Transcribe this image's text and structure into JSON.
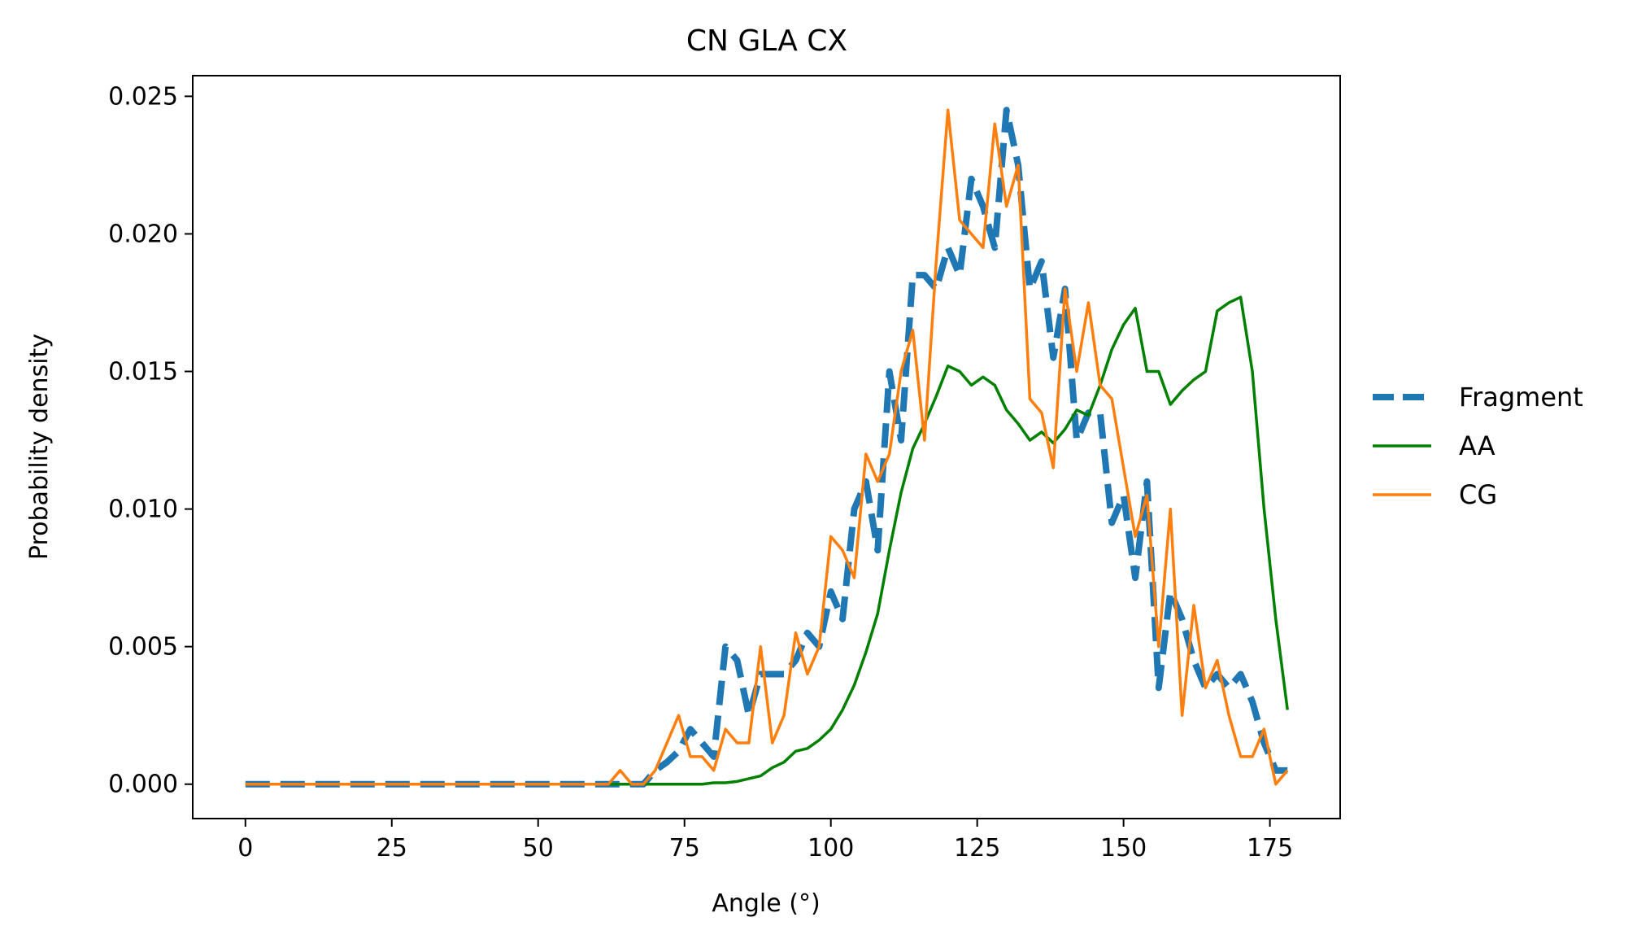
{
  "chart_data": {
    "type": "line",
    "title": "CN GLA CX",
    "xlabel": "Angle (°)",
    "ylabel": "Probability density",
    "xlim": [
      -9,
      187
    ],
    "ylim": [
      -0.00125,
      0.02575
    ],
    "xticks": [
      0,
      25,
      50,
      75,
      100,
      125,
      150,
      175
    ],
    "yticks": [
      0.0,
      0.005,
      0.01,
      0.015,
      0.02,
      0.025
    ],
    "xtick_labels": [
      "0",
      "25",
      "50",
      "75",
      "100",
      "125",
      "150",
      "175"
    ],
    "ytick_labels": [
      "0.000",
      "0.005",
      "0.010",
      "0.015",
      "0.020",
      "0.025"
    ],
    "grid": false,
    "legend_position": "right-outside",
    "series": [
      {
        "name": "Fragment",
        "color": "#1f77b4",
        "style": "dashed",
        "x": [
          0,
          2,
          4,
          6,
          8,
          10,
          12,
          14,
          16,
          18,
          20,
          22,
          24,
          26,
          28,
          30,
          32,
          34,
          36,
          38,
          40,
          42,
          44,
          46,
          48,
          50,
          52,
          54,
          56,
          58,
          60,
          62,
          64,
          66,
          68,
          70,
          72,
          74,
          76,
          78,
          80,
          82,
          84,
          86,
          88,
          90,
          92,
          94,
          96,
          98,
          100,
          102,
          104,
          106,
          108,
          110,
          112,
          114,
          116,
          118,
          120,
          122,
          124,
          126,
          128,
          130,
          132,
          134,
          136,
          138,
          140,
          142,
          144,
          146,
          148,
          150,
          152,
          154,
          156,
          158,
          160,
          162,
          164,
          166,
          168,
          170,
          172,
          174,
          176,
          178
        ],
        "y": [
          0,
          0,
          0,
          0,
          0,
          0,
          0,
          0,
          0,
          0,
          0,
          0,
          0,
          0,
          0,
          0,
          0,
          0,
          0,
          0,
          0,
          0,
          0,
          0,
          0,
          0,
          0,
          0,
          0,
          0,
          0,
          0,
          0,
          0,
          0,
          0.0005,
          0.0008,
          0.0012,
          0.002,
          0.0015,
          0.001,
          0.005,
          0.0045,
          0.0025,
          0.004,
          0.004,
          0.004,
          0.0045,
          0.0055,
          0.005,
          0.007,
          0.006,
          0.01,
          0.011,
          0.0085,
          0.015,
          0.0125,
          0.0185,
          0.0185,
          0.018,
          0.0195,
          0.0185,
          0.022,
          0.021,
          0.0195,
          0.0245,
          0.0225,
          0.018,
          0.019,
          0.0155,
          0.018,
          0.0125,
          0.0135,
          0.0135,
          0.0095,
          0.0105,
          0.0075,
          0.011,
          0.0035,
          0.007,
          0.006,
          0.0045,
          0.0035,
          0.004,
          0.0035,
          0.004,
          0.003,
          0.0015,
          0.0005,
          0.0005
        ]
      },
      {
        "name": "AA",
        "color": "#008000",
        "style": "solid",
        "x": [
          0,
          2,
          4,
          6,
          8,
          10,
          12,
          14,
          16,
          18,
          20,
          22,
          24,
          26,
          28,
          30,
          32,
          34,
          36,
          38,
          40,
          42,
          44,
          46,
          48,
          50,
          52,
          54,
          56,
          58,
          60,
          62,
          64,
          66,
          68,
          70,
          72,
          74,
          76,
          78,
          80,
          82,
          84,
          86,
          88,
          90,
          92,
          94,
          96,
          98,
          100,
          102,
          104,
          106,
          108,
          110,
          112,
          114,
          116,
          118,
          120,
          122,
          124,
          126,
          128,
          130,
          132,
          134,
          136,
          138,
          140,
          142,
          144,
          146,
          148,
          150,
          152,
          154,
          156,
          158,
          160,
          162,
          164,
          166,
          168,
          170,
          172,
          174,
          176,
          178
        ],
        "y": [
          0,
          0,
          0,
          0,
          0,
          0,
          0,
          0,
          0,
          0,
          0,
          0,
          0,
          0,
          0,
          0,
          0,
          0,
          0,
          0,
          0,
          0,
          0,
          0,
          0,
          0,
          0,
          0,
          0,
          0,
          0,
          0,
          0,
          0,
          0,
          0,
          0,
          0,
          0,
          0,
          5e-05,
          5e-05,
          0.0001,
          0.0002,
          0.0003,
          0.0006,
          0.0008,
          0.0012,
          0.0013,
          0.0016,
          0.002,
          0.0027,
          0.0036,
          0.0048,
          0.0062,
          0.0085,
          0.0106,
          0.0122,
          0.0131,
          0.0141,
          0.0152,
          0.015,
          0.0145,
          0.0148,
          0.0145,
          0.0136,
          0.0131,
          0.0125,
          0.0128,
          0.0124,
          0.0129,
          0.0136,
          0.0134,
          0.0145,
          0.0158,
          0.0167,
          0.0173,
          0.015,
          0.015,
          0.0138,
          0.0143,
          0.0147,
          0.015,
          0.0172,
          0.0175,
          0.0177,
          0.015,
          0.01,
          0.006,
          0.0027
        ]
      },
      {
        "name": "CG",
        "color": "#ff7f0e",
        "style": "solid",
        "x": [
          0,
          2,
          4,
          6,
          8,
          10,
          12,
          14,
          16,
          18,
          20,
          22,
          24,
          26,
          28,
          30,
          32,
          34,
          36,
          38,
          40,
          42,
          44,
          46,
          48,
          50,
          52,
          54,
          56,
          58,
          60,
          62,
          64,
          66,
          68,
          70,
          72,
          74,
          76,
          78,
          80,
          82,
          84,
          86,
          88,
          90,
          92,
          94,
          96,
          98,
          100,
          102,
          104,
          106,
          108,
          110,
          112,
          114,
          116,
          118,
          120,
          122,
          124,
          126,
          128,
          130,
          132,
          134,
          136,
          138,
          140,
          142,
          144,
          146,
          148,
          150,
          152,
          154,
          156,
          158,
          160,
          162,
          164,
          166,
          168,
          170,
          172,
          174,
          176,
          178
        ],
        "y": [
          0,
          0,
          0,
          0,
          0,
          0,
          0,
          0,
          0,
          0,
          0,
          0,
          0,
          0,
          0,
          0,
          0,
          0,
          0,
          0,
          0,
          0,
          0,
          0,
          0,
          0,
          0,
          0,
          0,
          0,
          0,
          0,
          0.0005,
          0,
          0,
          0.0005,
          0.0015,
          0.0025,
          0.001,
          0.001,
          0.0005,
          0.002,
          0.0015,
          0.0015,
          0.005,
          0.0015,
          0.0025,
          0.0055,
          0.004,
          0.005,
          0.009,
          0.0085,
          0.0075,
          0.012,
          0.011,
          0.012,
          0.015,
          0.0165,
          0.0125,
          0.019,
          0.0245,
          0.0205,
          0.02,
          0.0195,
          0.024,
          0.021,
          0.0225,
          0.014,
          0.0135,
          0.0115,
          0.018,
          0.015,
          0.0175,
          0.0145,
          0.014,
          0.0115,
          0.009,
          0.0105,
          0.005,
          0.01,
          0.0025,
          0.0065,
          0.0035,
          0.0045,
          0.0025,
          0.001,
          0.001,
          0.002,
          0.0,
          0.0005
        ]
      }
    ]
  }
}
